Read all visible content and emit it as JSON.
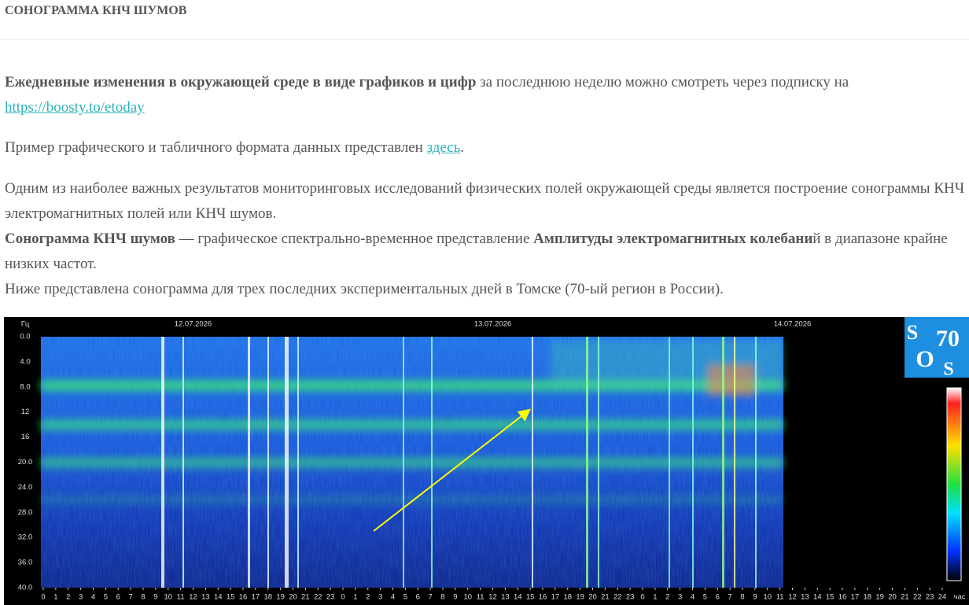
{
  "header": {
    "title": "СОНОГРАММА КНЧ ШУМОВ"
  },
  "paragraphs": [
    {
      "bold": "Ежедневные изменения в окружающей среде в виде графиков и цифр",
      "text": " за последнюю неделю можно смотреть через подписку на ",
      "link": "https://boosty.to/etoday"
    },
    {
      "text": "Пример графического и табличного формата данных представлен ",
      "link": "здесь",
      "end": "."
    },
    {
      "lines": [
        {
          "segments": [
            {
              "text": "Одним из наиболее важных результатов мониторинговых исследований физических полей окружающей среды является построение сонограммы КНЧ электромагнитных полей или КНЧ шумов."
            }
          ]
        },
        {
          "segments": [
            {
              "text": "Сонограмма КНЧ шумов",
              "bold": true
            },
            {
              "text": " — графическое спектрально-временное представление "
            },
            {
              "text": "Амплитуды электромагнитных колебани",
              "bold": true
            },
            {
              "text": "й в диапазоне крайне  низких частот."
            }
          ]
        },
        {
          "segments": [
            {
              "text": "Ниже представлена сонограмма для трех последних экспериментальных дней в Томске (70-ый регион в России)."
            }
          ]
        }
      ]
    }
  ],
  "spectrogram": {
    "y_unit": "Гц",
    "y_ticks": [
      "0.0",
      "4.0",
      "8.0",
      "12",
      "16",
      "20.0",
      "24.0",
      "28.0",
      "32.0",
      "36.0",
      "40.0"
    ],
    "dates": [
      "12.07.2026",
      "13.07.2026",
      "14.07.2026"
    ],
    "hour_ticks": [
      0,
      1,
      2,
      3,
      4,
      5,
      6,
      7,
      8,
      9,
      10,
      11,
      12,
      13,
      14,
      15,
      16,
      17,
      18,
      19,
      20,
      21,
      22,
      23,
      0,
      1,
      2,
      3,
      4,
      5,
      6,
      7,
      8,
      9,
      10,
      11,
      12,
      13,
      14,
      15,
      16,
      17,
      18,
      19,
      20,
      21,
      22,
      23,
      0,
      1,
      2,
      3,
      4,
      5,
      6,
      7,
      8,
      9,
      10,
      11,
      12,
      13,
      14,
      15,
      16,
      17,
      18,
      19,
      20,
      21,
      22,
      23,
      24
    ],
    "x_unit": "час",
    "logo": [
      "S",
      "70",
      "O",
      "S"
    ]
  }
}
